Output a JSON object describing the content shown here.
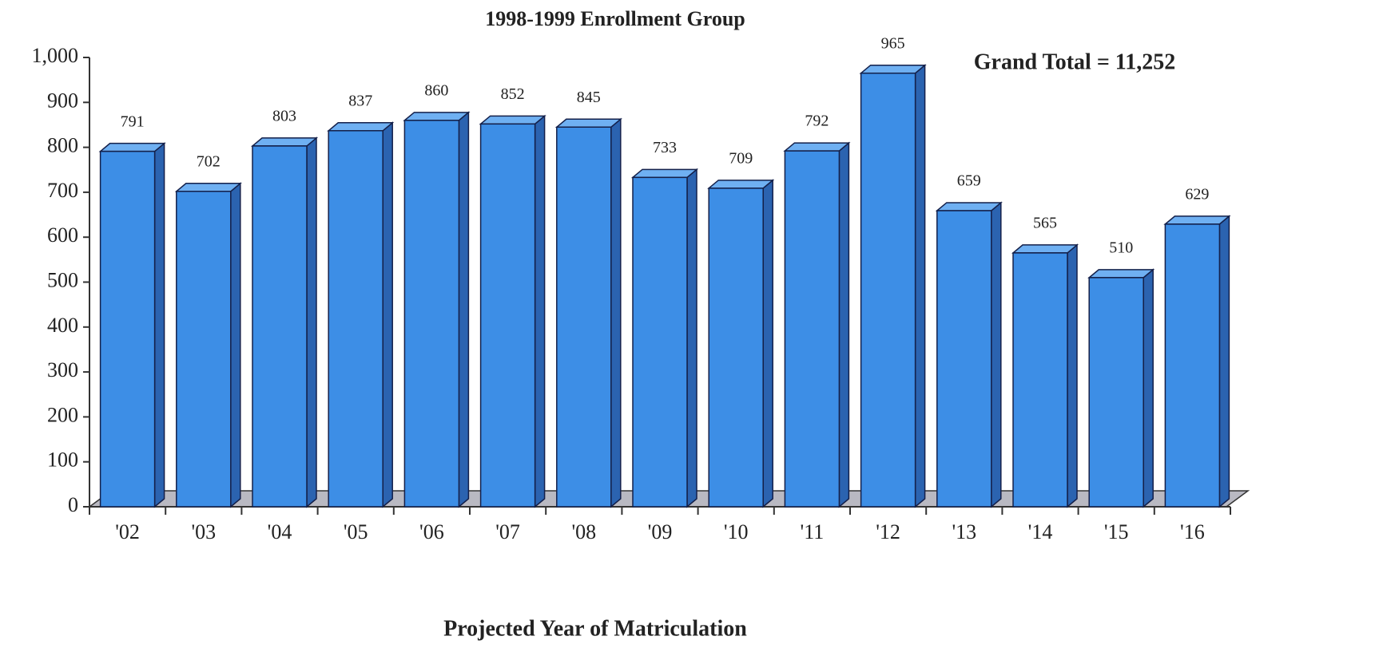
{
  "chart_data": {
    "type": "bar3d",
    "title": "1998-1999 Enrollment Group",
    "xlabel": "Projected Year of Matriculation",
    "annotation": "Grand Total = 11,252",
    "categories": [
      "'02",
      "'03",
      "'04",
      "'05",
      "'06",
      "'07",
      "'08",
      "'09",
      "'10",
      "'11",
      "'12",
      "'13",
      "'14",
      "'15",
      "'16"
    ],
    "values": [
      791,
      702,
      803,
      837,
      860,
      852,
      845,
      733,
      709,
      792,
      965,
      659,
      565,
      510,
      629
    ],
    "color": "#3d8ee6",
    "ylim": [
      0,
      1000
    ],
    "yticks": [
      0,
      100,
      200,
      300,
      400,
      500,
      600,
      700,
      800,
      900,
      {
        "value": 1000,
        "label": "1,000"
      }
    ],
    "grid": false
  }
}
